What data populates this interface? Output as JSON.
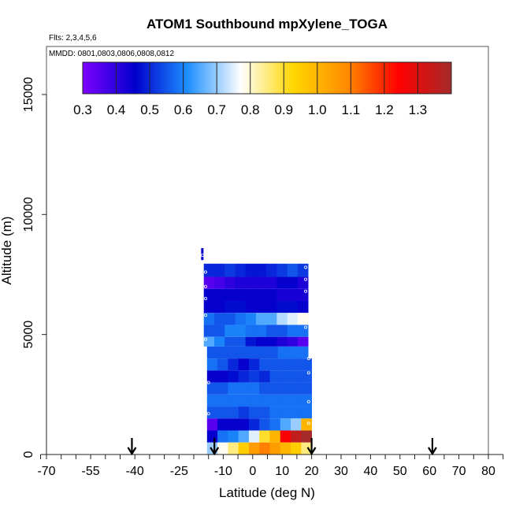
{
  "chart_data": {
    "type": "heatmap",
    "title": "ATOM1 Southbound mpXylene_TOGA",
    "flights_label": "Flts: 2,3,4,5,6",
    "dates_label": "MMDD: 0801,0803,0806,0808,0812",
    "xlabel": "Latitude (deg N)",
    "ylabel": "Altitude (m)",
    "xlim": [
      -70,
      80
    ],
    "ylim": [
      0,
      17000
    ],
    "x_ticks_labeled": [
      "-70",
      "-55",
      "-40",
      "-25",
      "-10",
      "0",
      "10",
      "20",
      "30",
      "40",
      "50",
      "60",
      "70",
      "80"
    ],
    "x_ticks_all": [
      -72,
      -70,
      -65,
      -60,
      -55,
      -50,
      -45,
      -40,
      -35,
      -30,
      -25,
      -20,
      -15,
      -10,
      -5,
      0,
      5,
      10,
      15,
      20,
      25,
      30,
      35,
      40,
      45,
      50,
      55,
      60,
      65,
      70,
      75,
      80,
      85
    ],
    "y_ticks": [
      0,
      5000,
      10000,
      15000
    ],
    "y_tick_labels": [
      "0",
      "5000",
      "10000",
      "15000"
    ],
    "colorbar": {
      "min": 0.3,
      "max": 1.4,
      "tick_values": [
        0.3,
        0.4,
        0.5,
        0.6,
        0.7,
        0.8,
        0.9,
        1.0,
        1.1,
        1.2,
        1.3
      ],
      "tick_labels": [
        "0.3",
        "0.4",
        "0.5",
        "0.6",
        "0.7",
        "0.8",
        "0.9",
        "1.0",
        "1.1",
        "1.2",
        "1.3"
      ],
      "colors": [
        "#7f00ff",
        "#0000cd",
        "#1e90ff",
        "#ffffff",
        "#ffd700",
        "#ff8c00",
        "#ff0000",
        "#a52a2a"
      ]
    },
    "arrow_latitudes": [
      -41,
      -13,
      20,
      61
    ],
    "rows": [
      {
        "alt": [
          8100,
          8600
        ],
        "lat": [
          -17.5,
          -16.8
        ],
        "values": [
          0.45
        ]
      },
      {
        "alt": [
          7400,
          7950
        ],
        "lat": [
          -16.6,
          18.8
        ],
        "values": [
          0.5,
          0.5,
          0.52,
          0.5,
          0.48,
          0.48,
          0.5,
          0.52,
          0.55,
          0.52
        ]
      },
      {
        "alt": [
          6900,
          7400
        ],
        "lat": [
          -16.6,
          18.8
        ],
        "values": [
          0.35,
          0.37,
          0.4,
          0.42,
          0.42,
          0.42,
          0.42,
          0.45,
          0.45,
          0.42
        ]
      },
      {
        "alt": [
          6400,
          6900
        ],
        "lat": [
          -16.6,
          18.8
        ],
        "values": [
          0.45,
          0.45,
          0.45,
          0.45,
          0.45,
          0.45,
          0.45,
          0.43,
          0.43,
          0.43
        ]
      },
      {
        "alt": [
          5900,
          6400
        ],
        "lat": [
          -16.6,
          18.8
        ],
        "values": [
          0.45,
          0.45,
          0.47,
          0.47,
          0.45,
          0.45,
          0.45,
          0.47,
          0.47,
          0.45
        ]
      },
      {
        "alt": [
          5400,
          5900
        ],
        "lat": [
          -16.6,
          18.8
        ],
        "values": [
          0.58,
          0.55,
          0.55,
          0.58,
          0.6,
          0.65,
          0.65,
          0.72,
          0.75,
          0.78
        ]
      },
      {
        "alt": [
          4900,
          5400
        ],
        "lat": [
          -16.6,
          18.8
        ],
        "values": [
          0.55,
          0.55,
          0.6,
          0.6,
          0.58,
          0.58,
          0.55,
          0.55,
          0.58,
          0.58
        ]
      },
      {
        "alt": [
          4500,
          4900
        ],
        "lat": [
          -16.6,
          18.8
        ],
        "values": [
          0.65,
          0.6,
          0.55,
          0.55,
          0.48,
          0.45,
          0.45,
          0.42,
          0.4,
          0.35
        ]
      },
      {
        "alt": [
          4000,
          4500
        ],
        "lat": [
          -15.5,
          18.8
        ],
        "values": [
          0.55,
          0.55,
          0.55,
          0.55,
          0.55,
          0.55,
          0.55,
          0.58,
          0.58,
          0.58
        ]
      },
      {
        "alt": [
          3500,
          4000
        ],
        "lat": [
          -15.5,
          20.0
        ],
        "values": [
          0.58,
          0.55,
          0.5,
          0.45,
          0.5,
          0.55,
          0.55,
          0.55,
          0.55,
          0.55
        ]
      },
      {
        "alt": [
          3000,
          3500
        ],
        "lat": [
          -15.5,
          20.0
        ],
        "values": [
          0.45,
          0.45,
          0.47,
          0.5,
          0.52,
          0.5,
          0.55,
          0.55,
          0.55,
          0.55
        ]
      },
      {
        "alt": [
          2500,
          3000
        ],
        "lat": [
          -15.5,
          20.0
        ],
        "values": [
          0.55,
          0.55,
          0.58,
          0.58,
          0.58,
          0.55,
          0.55,
          0.55,
          0.55,
          0.55
        ]
      },
      {
        "alt": [
          2000,
          2500
        ],
        "lat": [
          -15.5,
          20.0
        ],
        "values": [
          0.58,
          0.58,
          0.58,
          0.58,
          0.58,
          0.58,
          0.58,
          0.58,
          0.58,
          0.58
        ]
      },
      {
        "alt": [
          1500,
          2000
        ],
        "lat": [
          -15.5,
          20.0
        ],
        "values": [
          0.55,
          0.55,
          0.55,
          0.52,
          0.55,
          0.55,
          0.58,
          0.58,
          0.58,
          0.58
        ]
      },
      {
        "alt": [
          1000,
          1500
        ],
        "lat": [
          -15.5,
          20.0
        ],
        "values": [
          0.35,
          0.45,
          0.45,
          0.45,
          0.5,
          0.55,
          0.58,
          0.65,
          0.7,
          1.0
        ]
      },
      {
        "alt": [
          500,
          1000
        ],
        "lat": [
          -15.5,
          20.0
        ],
        "values": [
          0.45,
          0.58,
          0.6,
          0.65,
          0.75,
          0.9,
          1.0,
          1.25,
          1.35,
          1.4
        ]
      },
      {
        "alt": [
          0,
          500
        ],
        "lat": [
          -15.5,
          20.0
        ],
        "values": [
          0.7,
          0.78,
          0.85,
          0.95,
          1.05,
          1.1,
          1.05,
          1.0,
          0.95,
          0.85
        ]
      }
    ],
    "sample_points": [
      {
        "lat": -17,
        "alt": 8300
      },
      {
        "lat": -16,
        "alt": 7600
      },
      {
        "lat": -16,
        "alt": 7000
      },
      {
        "lat": -16,
        "alt": 6500
      },
      {
        "lat": -16,
        "alt": 5800
      },
      {
        "lat": -16,
        "alt": 4800
      },
      {
        "lat": -15,
        "alt": 3000
      },
      {
        "lat": -15,
        "alt": 1700
      },
      {
        "lat": 18,
        "alt": 7800
      },
      {
        "lat": 18,
        "alt": 7300
      },
      {
        "lat": 18,
        "alt": 6800
      },
      {
        "lat": 18,
        "alt": 5300
      },
      {
        "lat": 19,
        "alt": 4000
      },
      {
        "lat": 19,
        "alt": 3400
      },
      {
        "lat": 19,
        "alt": 2200
      },
      {
        "lat": 19,
        "alt": 1300
      }
    ]
  }
}
